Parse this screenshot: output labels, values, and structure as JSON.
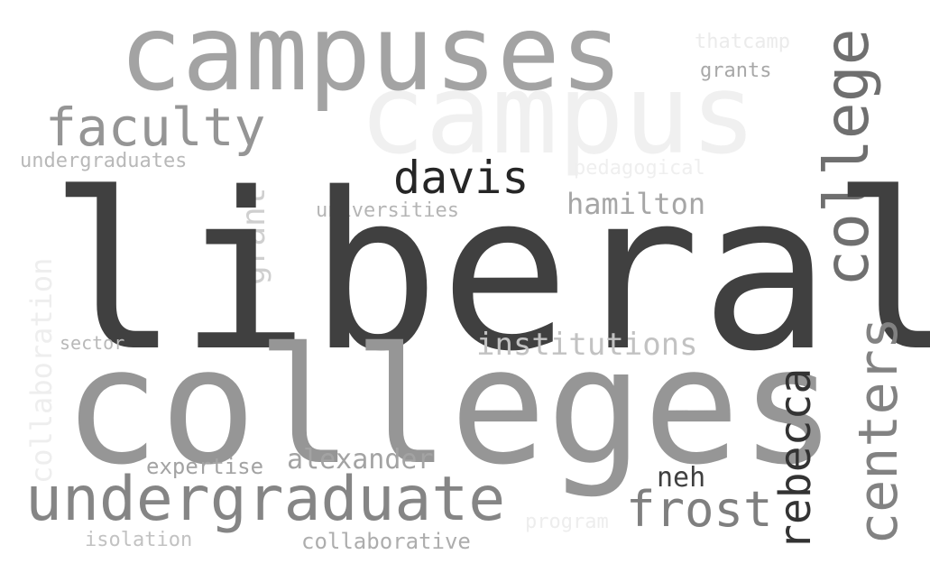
{
  "words": {
    "campuses": "campuses",
    "campus": "campus",
    "thatcamp": "thatcamp",
    "grants": "grants",
    "faculty": "faculty",
    "undergraduates": "undergraduates",
    "pedagogical": "pedagogical",
    "davis": "davis",
    "hamilton": "hamilton",
    "universities": "universities",
    "grant": "grant",
    "college": "college",
    "liberal": "liberal",
    "collaboration": "collaboration",
    "sector": "sector",
    "institutions": "institutions",
    "colleges": "colleges",
    "centers": "centers",
    "rebecca": "rebecca",
    "expertise": "expertise",
    "alexander": "alexander",
    "neh": "neh",
    "undergraduate": "undergraduate",
    "frost": "frost",
    "program": "program",
    "isolation": "isolation",
    "collaborative": "collaborative"
  },
  "colors": {
    "background": "#ffffff",
    "darkest": "#262626",
    "dark": "#404040",
    "mid": "#969696",
    "light": "#c2c2c2",
    "faint": "#f0f0f0"
  }
}
